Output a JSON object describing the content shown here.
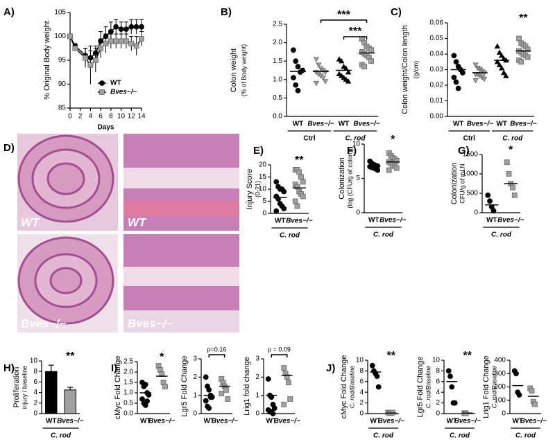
{
  "chart_data": [
    {
      "type": "line",
      "panel": "A)",
      "ylabel": "% Original Body weight",
      "xlabel": "Days",
      "x": [
        0,
        1,
        3,
        4,
        5,
        6,
        7,
        8,
        9,
        10,
        11,
        12,
        13,
        14
      ],
      "xlim": [
        0,
        14
      ],
      "xticks": [
        0,
        2,
        4,
        6,
        8,
        10,
        12,
        14
      ],
      "ylim": [
        85,
        105
      ],
      "yticks": [
        85,
        90,
        95,
        100,
        105
      ],
      "series": [
        {
          "name": "WT",
          "color": "#000000",
          "marker": "circle",
          "values": [
            100,
            98,
            96,
            95.5,
            96.5,
            99,
            100,
            101,
            102,
            101.5,
            101.5,
            102,
            102,
            102
          ],
          "errors": [
            0,
            0.5,
            1.5,
            1.5,
            1.5,
            2,
            2,
            2,
            1.5,
            1.5,
            1.5,
            1.5,
            1.5,
            1.5
          ]
        },
        {
          "name": "Bves−/−",
          "color": "#a0a0a0",
          "marker": "square",
          "values": [
            100,
            97.5,
            95.5,
            94,
            95,
            97.5,
            98.5,
            99,
            99,
            99,
            99,
            98.5,
            98,
            99.5
          ],
          "errors": [
            0,
            0.5,
            2,
            4,
            2.5,
            2,
            2,
            1.5,
            1.5,
            1.5,
            1.5,
            1.5,
            2,
            1.5
          ]
        }
      ],
      "legend": "lower right"
    },
    {
      "type": "dot",
      "panel": "B)",
      "ylabel": "Colon weight",
      "ylabel2": "(% of Body weight)",
      "categories": [
        "WT",
        "Bves−/−",
        "WT",
        "Bves−/−"
      ],
      "groups": [
        "Ctrl",
        "C. rod"
      ],
      "colors": [
        "#000000",
        "#a0a0a0",
        "#000000",
        "#a0a0a0"
      ],
      "markers": [
        "circle",
        "triangle-down",
        "triangle-up",
        "square"
      ],
      "points": [
        [
          1.8,
          1.5,
          1.35,
          1.2,
          1.25,
          1.05,
          0.85,
          0.7
        ],
        [
          1.55,
          1.4,
          1.3,
          1.25,
          1.2,
          1.2,
          1.15,
          1.1,
          1.05,
          0.95,
          0.9
        ],
        [
          1.55,
          1.5,
          1.35,
          1.3,
          1.2,
          1.15,
          1.1,
          1.05,
          1.0,
          0.95
        ],
        [
          2.1,
          2.0,
          1.9,
          1.85,
          1.8,
          1.75,
          1.7,
          1.65,
          1.6,
          1.5,
          1.4,
          1.35
        ]
      ],
      "means": [
        1.22,
        1.22,
        1.25,
        1.72
      ],
      "ylim": [
        0,
        2.5
      ],
      "yticks": [
        {
          "value": 0,
          "label": "0.0"
        },
        {
          "value": 0.5,
          "label": "0.5"
        },
        {
          "value": 1,
          "label": "1.0"
        },
        1.5,
        {
          "value": 2,
          "label": "2.0"
        },
        2.5
      ],
      "annotations": [
        {
          "text": "***",
          "categories": [
            1,
            3
          ]
        },
        {
          "text": "***",
          "categories": [
            2,
            3
          ]
        }
      ]
    },
    {
      "type": "dot",
      "panel": "C)",
      "ylabel": "Colon weight/Colon length",
      "ylabel2": "(g/cm)",
      "categories": [
        "WT",
        "Bves−/−",
        "WT",
        "Bves−/−"
      ],
      "groups": [
        "Ctrl",
        "C. rod"
      ],
      "colors": [
        "#000000",
        "#a0a0a0",
        "#000000",
        "#a0a0a0"
      ],
      "markers": [
        "circle",
        "triangle-down",
        "triangle-up",
        "square"
      ],
      "points": [
        [
          0.039,
          0.035,
          0.032,
          0.03,
          0.028,
          0.025,
          0.022,
          0.018
        ],
        [
          0.033,
          0.031,
          0.03,
          0.029,
          0.028,
          0.027,
          0.027,
          0.026,
          0.025,
          0.024,
          0.023
        ],
        [
          0.045,
          0.041,
          0.039,
          0.037,
          0.036,
          0.035,
          0.033,
          0.031,
          0.028,
          0.026
        ],
        [
          0.05,
          0.047,
          0.046,
          0.045,
          0.043,
          0.042,
          0.041,
          0.04,
          0.039,
          0.038,
          0.036,
          0.035
        ]
      ],
      "means": [
        0.03,
        0.028,
        0.036,
        0.042
      ],
      "ylim": [
        0,
        0.06
      ],
      "yticks": [
        {
          "value": 0,
          "label": "0.00"
        },
        {
          "value": 0.01,
          "label": "0.01"
        },
        {
          "value": 0.02,
          "label": "0.02"
        },
        {
          "value": 0.03,
          "label": "0.03"
        },
        {
          "value": 0.04,
          "label": "0.04"
        },
        {
          "value": 0.05,
          "label": "0.05"
        },
        {
          "value": 0.06,
          "label": "0.06"
        }
      ],
      "annotations": [
        {
          "text": "**"
        }
      ]
    },
    {
      "type": "dot",
      "panel": "E)",
      "ylabel": "Injury Score",
      "ylabel2": "(0-21)",
      "categories": [
        "WT",
        "Bves−/−"
      ],
      "groups": [
        "C. rod"
      ],
      "colors": [
        "#000000",
        "#a0a0a0"
      ],
      "markers": [
        "circle",
        "square"
      ],
      "points": [
        [
          13,
          11,
          10,
          10,
          9,
          7,
          6,
          4,
          3,
          2,
          1
        ],
        [
          18,
          18,
          17,
          15,
          13,
          12,
          11,
          9,
          8,
          7,
          5,
          3
        ]
      ],
      "means": [
        6.5,
        10.5
      ],
      "ylim": [
        0,
        20
      ],
      "yticks": [
        0,
        5,
        10,
        15,
        20
      ],
      "annotations": [
        {
          "text": "**"
        }
      ]
    },
    {
      "type": "dot",
      "panel": "F)",
      "ylabel": "Colonization",
      "ylabel2": "(log (CFU/g of colon))",
      "categories": [
        "WT",
        "Bves−/−"
      ],
      "groups": [
        "C. rod"
      ],
      "colors": [
        "#000000",
        "#a0a0a0"
      ],
      "markers": [
        "circle",
        "square"
      ],
      "points": [
        [
          7.5,
          7.2,
          7,
          6.9,
          6.8,
          6.7,
          6.6,
          6.5,
          6.4,
          6.2
        ],
        [
          8.7,
          8.3,
          8,
          7.8,
          7.6,
          7.4,
          7.2,
          7,
          6.8,
          6.5,
          6.2
        ]
      ],
      "means": [
        6.8,
        7.4
      ],
      "ylim": [
        0,
        10
      ],
      "yticks": [
        0,
        5,
        10
      ],
      "annotations": [
        {
          "text": "*"
        }
      ]
    },
    {
      "type": "dot",
      "panel": "G)",
      "ylabel": "Colonization",
      "ylabel2": "CFU/g of mLN",
      "categories": [
        "WT",
        "Bves−/−"
      ],
      "groups": [
        "C. rod"
      ],
      "colors": [
        "#000000",
        "#a0a0a0"
      ],
      "markers": [
        "circle",
        "square"
      ],
      "points": [
        [
          450,
          300,
          150,
          50
        ],
        [
          1300,
          1000,
          750,
          650,
          450
        ]
      ],
      "means": [
        200,
        750
      ],
      "ylim": [
        0,
        1500
      ],
      "yticks": [
        0,
        500,
        1000,
        1500
      ],
      "annotations": [
        {
          "text": "*"
        }
      ]
    },
    {
      "type": "bar",
      "panel": "H)",
      "ylabel": "Proliferation",
      "ylabel2": "injury / baseline",
      "categories": [
        "WT",
        "Bves−/−"
      ],
      "groups": [
        "C. rod"
      ],
      "colors": [
        "#000000",
        "#a0a0a0"
      ],
      "values": [
        8,
        4.5
      ],
      "errors": [
        1.2,
        0.5
      ],
      "ylim": [
        0,
        10
      ],
      "yticks": [
        0,
        2,
        4,
        6,
        8,
        10
      ],
      "annotations": [
        {
          "text": "**"
        }
      ]
    },
    {
      "type": "dot",
      "panel": "I)",
      "ylabel": "cMyc Fold Change",
      "categories": [
        "WT",
        "Bves−/−"
      ],
      "colors": [
        "#000000",
        "#a0a0a0"
      ],
      "markers": [
        "circle",
        "square"
      ],
      "points": [
        [
          1.5,
          1.3,
          1.4,
          1.0,
          0.9,
          0.7,
          0.5,
          0.4,
          0.6
        ],
        [
          2.3,
          2.1,
          1.9,
          1.5,
          1.3
        ]
      ],
      "means": [
        1.0,
        1.8
      ],
      "ylim": [
        0,
        2.5
      ],
      "yticks": [
        {
          "value": 0,
          "label": "0.0"
        },
        {
          "value": 0.5,
          "label": "0.5"
        },
        {
          "value": 1,
          "label": "1.0"
        },
        1.5,
        {
          "value": 2,
          "label": "2.0"
        },
        2.5
      ],
      "annotations": [
        {
          "text": "*"
        }
      ]
    },
    {
      "type": "dot",
      "ylabel": "Lgr5 Fold Change",
      "categories": [
        "WT",
        "Bves−/−"
      ],
      "colors": [
        "#000000",
        "#a0a0a0"
      ],
      "markers": [
        "circle",
        "square"
      ],
      "points": [
        [
          2.0,
          1.5,
          1.3,
          1.0,
          0.9,
          0.7,
          0.4,
          0.3,
          0.9
        ],
        [
          1.9,
          1.7,
          1.5,
          1.3,
          0.8,
          1.1
        ]
      ],
      "means": [
        1.0,
        1.5
      ],
      "ylim": [
        0,
        3
      ],
      "yticks": [
        0,
        1,
        2,
        3
      ],
      "annotations": [
        {
          "text": "p=0.16",
          "categories": [
            0,
            1
          ]
        }
      ]
    },
    {
      "type": "dot",
      "ylabel": "Lrig1 fold change",
      "categories": [
        "WT",
        "Bves−/−"
      ],
      "colors": [
        "#000000",
        "#a0a0a0"
      ],
      "markers": [
        "circle",
        "square"
      ],
      "points": [
        [
          1.9,
          1.0,
          0.9,
          0.5,
          0.3,
          0.2,
          0.1,
          0.1,
          0.0
        ],
        [
          2.5,
          2.2,
          2.0,
          1.7,
          0.8,
          0.5
        ]
      ],
      "means": [
        1.0,
        2.1
      ],
      "ylim": [
        0,
        3
      ],
      "yticks": [
        0,
        1,
        2,
        3
      ],
      "annotations": [
        {
          "text": "p = 0.09",
          "categories": [
            0,
            1
          ]
        }
      ]
    },
    {
      "type": "dot",
      "panel": "J)",
      "ylabel": "cMyc Fold Change",
      "ylabel2": "C. rod/Baseline",
      "categories": [
        "WT",
        "Bves−/−"
      ],
      "groups": [
        "C. rod"
      ],
      "colors": [
        "#000000",
        "#a0a0a0"
      ],
      "markers": [
        "circle",
        "square"
      ],
      "points": [
        [
          9,
          8,
          7.5,
          7,
          5
        ],
        [
          0.2,
          0.1,
          0.1,
          0.2
        ]
      ],
      "means": [
        7.8,
        0.1
      ],
      "ylim": [
        0,
        10
      ],
      "yticks": [
        0,
        2,
        4,
        6,
        8,
        10
      ],
      "annotations": [
        {
          "text": "**"
        }
      ]
    },
    {
      "type": "dot",
      "ylabel": "Lgr5 Fold Change",
      "ylabel2": "C. rod/Baseline",
      "categories": [
        "WT",
        "Bves−/−"
      ],
      "groups": [
        "C. rod"
      ],
      "colors": [
        "#000000",
        "#a0a0a0"
      ],
      "markers": [
        "circle",
        "square"
      ],
      "points": [
        [
          8,
          7,
          5,
          2,
          2
        ],
        [
          0.1,
          0.05
        ]
      ],
      "means": [
        6,
        0.1
      ],
      "ylim": [
        0,
        10
      ],
      "yticks": [
        0,
        2,
        4,
        6,
        8,
        10
      ],
      "annotations": [
        {
          "text": "**"
        }
      ]
    },
    {
      "type": "dot",
      "ylabel": "Lrig1 Fold Change",
      "ylabel2": "C. rod/Baseline",
      "categories": [
        "WT",
        "Bves−/−"
      ],
      "groups": [
        "C. rod"
      ],
      "colors": [
        "#000000",
        "#a0a0a0"
      ],
      "markers": [
        "circle",
        "square"
      ],
      "points": [
        [
          320,
          300,
          160,
          140
        ],
        [
          190,
          170,
          90,
          70
        ]
      ],
      "means": [
        210,
        130
      ],
      "ylim": [
        0,
        400
      ],
      "yticks": [
        0,
        100,
        200,
        300,
        400
      ]
    }
  ],
  "figure_d": {
    "panel": "D)",
    "images": [
      {
        "label": "WT"
      },
      {
        "label": "WT"
      },
      {
        "label": "Bves−/−"
      },
      {
        "label": "Bves−/−"
      }
    ]
  }
}
